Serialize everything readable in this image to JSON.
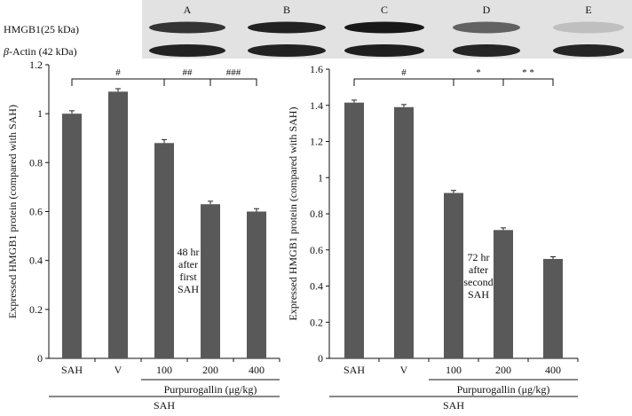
{
  "blot": {
    "lanes": [
      "A",
      "B",
      "C",
      "D",
      "E"
    ],
    "rows": [
      {
        "name": "HMGB1",
        "label": "HMGB1(25 kDa)",
        "intensity": [
          0.8,
          0.9,
          0.95,
          0.55,
          0.05
        ]
      },
      {
        "name": "beta-actin",
        "label_symbol": "β",
        "label_rest": "-Actin (42 kDa)",
        "intensity": [
          0.9,
          0.9,
          0.92,
          0.88,
          0.88
        ]
      }
    ]
  },
  "chart_data": [
    {
      "type": "bar",
      "categories": [
        "SAH",
        "V",
        "100",
        "200",
        "400"
      ],
      "values": [
        1.0,
        1.09,
        0.88,
        0.63,
        0.6
      ],
      "errors": [
        0.012,
        0.012,
        0.014,
        0.012,
        0.012
      ],
      "ylim": [
        0,
        1.2
      ],
      "yticks": [
        0,
        0.2,
        0.4,
        0.6,
        0.8,
        1,
        1.2
      ],
      "ylabel": "Expressed HMGB1 protein (compared with SAH)",
      "annotation": [
        "48 hr",
        "after",
        "first",
        "SAH"
      ],
      "group_label": "Purpurogallin (μg/kg)",
      "outer_label": "SAH",
      "significance": [
        {
          "label": "#",
          "from": 0,
          "to": 2
        },
        {
          "label": "##",
          "from": 2,
          "to": 3
        },
        {
          "label": "###",
          "from": 3,
          "to": 4
        }
      ]
    },
    {
      "type": "bar",
      "categories": [
        "SAH",
        "V",
        "100",
        "200",
        "400"
      ],
      "values": [
        1.415,
        1.39,
        0.915,
        0.71,
        0.55
      ],
      "errors": [
        0.014,
        0.014,
        0.014,
        0.012,
        0.012
      ],
      "ylim": [
        0,
        1.6
      ],
      "yticks": [
        0,
        0.2,
        0.4,
        0.6,
        0.8,
        1,
        1.2,
        1.4,
        1.6
      ],
      "ylabel": "Expressed HMGB1 protein (compared with SAH)",
      "annotation": [
        "72 hr",
        "after",
        "second",
        "SAH"
      ],
      "group_label": "Purpurogallin (μg/kg)",
      "outer_label": "SAH",
      "significance": [
        {
          "label": "#",
          "from": 0,
          "to": 2
        },
        {
          "label": "*",
          "from": 2,
          "to": 3
        },
        {
          "label": "* *",
          "from": 3,
          "to": 4
        }
      ]
    }
  ],
  "colors": {
    "bar": "#595959",
    "axis": "#111111"
  }
}
